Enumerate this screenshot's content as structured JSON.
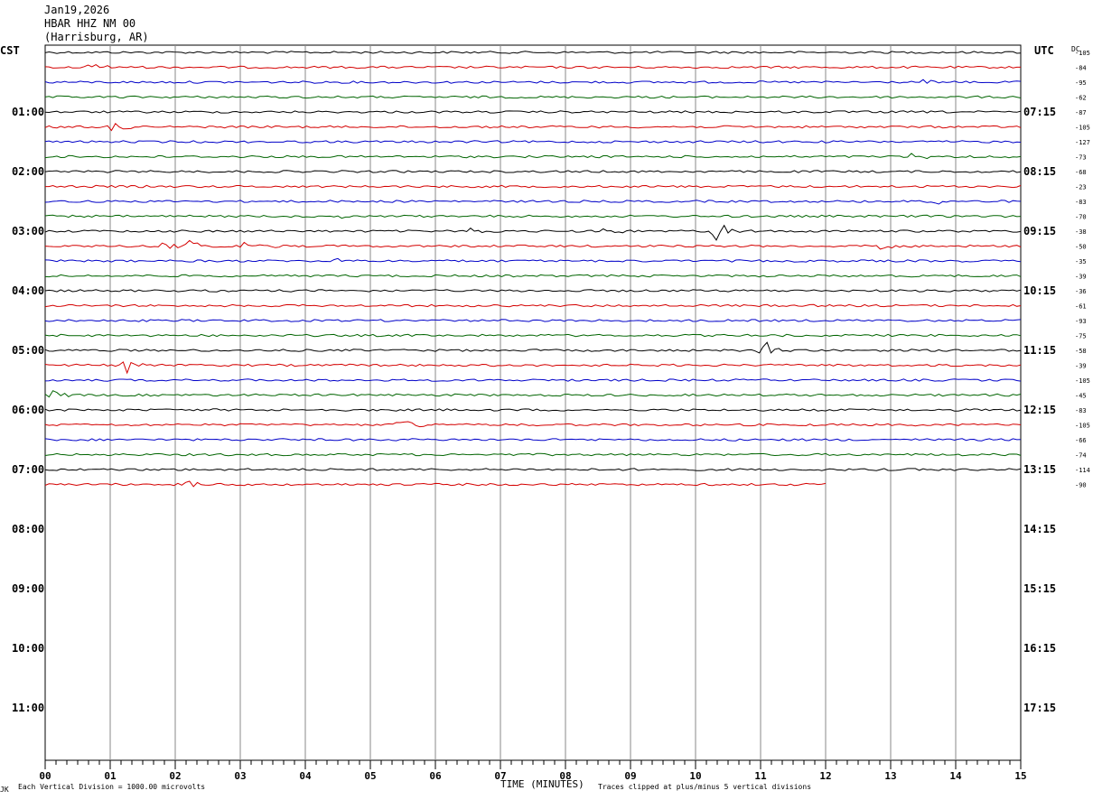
{
  "header": {
    "date": "Jan19,2026",
    "station": "HBAR HHZ NM 00",
    "location": "(Harrisburg, AR)"
  },
  "left_tz": "CST",
  "right_tz": "UTC",
  "dc_label": "DC",
  "footer": {
    "corner_mark": "JK",
    "scale_note": "Each Vertical Division = 1000.00 microvolts",
    "xlabel": "TIME (MINUTES)",
    "clip_note": "Traces clipped at plus/minus 5 vertical divisions"
  },
  "chart_data": {
    "type": "line",
    "xlabel": "TIME (MINUTES)",
    "xlim": [
      0,
      15
    ],
    "x_ticks": [
      "00",
      "01",
      "02",
      "03",
      "04",
      "05",
      "06",
      "07",
      "08",
      "09",
      "10",
      "11",
      "12",
      "13",
      "14",
      "15"
    ],
    "left_hour_labels": [
      "01:00",
      "02:00",
      "03:00",
      "04:00",
      "05:00",
      "06:00",
      "07:00",
      "08:00",
      "09:00",
      "10:00",
      "11:00"
    ],
    "right_hour_labels": [
      "07:15",
      "08:15",
      "09:15",
      "10:15",
      "11:15",
      "12:15",
      "13:15",
      "14:15",
      "15:15",
      "16:15",
      "17:15"
    ],
    "trace_colors": [
      "#000000",
      "#d40000",
      "#0000c8",
      "#006400"
    ],
    "trace_dc_offsets": [
      "-105",
      "-84",
      "-95",
      "-62",
      "-87",
      "-105",
      "-127",
      "-73",
      "-68",
      "-23",
      "-83",
      "-70",
      "-38",
      "-50",
      "-35",
      "-39",
      "-36",
      "-61",
      "-93",
      "-75",
      "-58",
      "-39",
      "-105",
      "-45",
      "-83",
      "-105",
      "-66",
      "-74",
      "-114",
      "-90"
    ],
    "last_trace_end_minute": 12,
    "events": [
      {
        "trace": 1,
        "minute": 0.7,
        "amplitude": 5
      },
      {
        "trace": 5,
        "minute": 1.05,
        "amplitude": 6
      },
      {
        "trace": 2,
        "minute": 13.5,
        "amplitude": 4
      },
      {
        "trace": 7,
        "minute": 13.3,
        "amplitude": 5
      },
      {
        "trace": 10,
        "minute": 13.6,
        "amplitude": 6
      },
      {
        "trace": 11,
        "minute": 4.5,
        "amplitude": 4
      },
      {
        "trace": 12,
        "minute": 6.5,
        "amplitude": 5
      },
      {
        "trace": 12,
        "minute": 8.6,
        "amplitude": 6
      },
      {
        "trace": 12,
        "minute": 10.3,
        "amplitude": 12
      },
      {
        "trace": 13,
        "minute": 1.75,
        "amplitude": 5
      },
      {
        "trace": 13,
        "minute": 2.2,
        "amplitude": 6
      },
      {
        "trace": 13,
        "minute": 3.05,
        "amplitude": 9
      },
      {
        "trace": 13,
        "minute": 12.8,
        "amplitude": 7
      },
      {
        "trace": 14,
        "minute": 4.5,
        "amplitude": 3
      },
      {
        "trace": 20,
        "minute": 11.05,
        "amplitude": 10
      },
      {
        "trace": 21,
        "minute": 1.25,
        "amplitude": 8
      },
      {
        "trace": 23,
        "minute": 0.1,
        "amplitude": 5
      },
      {
        "trace": 25,
        "minute": 5.45,
        "amplitude": 9
      },
      {
        "trace": 29,
        "minute": 2.2,
        "amplitude": 4
      }
    ]
  }
}
